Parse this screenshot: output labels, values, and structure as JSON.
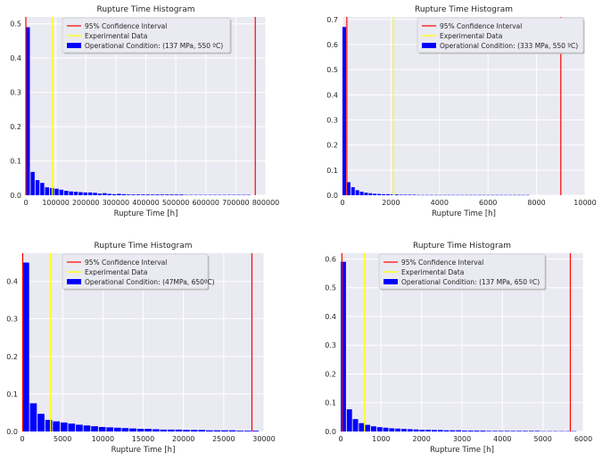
{
  "chart_data": [
    {
      "type": "bar",
      "title": "Rupture Time Histogram",
      "xlabel": "Rupture Time [h]",
      "ylabel": "",
      "xlim": [
        0,
        800000
      ],
      "ylim": [
        0,
        0.52
      ],
      "xticks": [
        0,
        100000,
        200000,
        300000,
        400000,
        500000,
        600000,
        700000,
        800000
      ],
      "xtick_labels": [
        "0",
        "100000",
        "200000",
        "300000",
        "400000",
        "500000",
        "600000",
        "700000",
        "800000"
      ],
      "yticks": [
        0.0,
        0.1,
        0.2,
        0.3,
        0.4,
        0.5
      ],
      "ytick_labels": [
        "0.0",
        "0.1",
        "0.2",
        "0.3",
        "0.4",
        "0.5"
      ],
      "bin_width": 16000,
      "values": [
        0.49,
        0.068,
        0.044,
        0.036,
        0.023,
        0.021,
        0.019,
        0.016,
        0.013,
        0.011,
        0.01,
        0.009,
        0.008,
        0.008,
        0.007,
        0.005,
        0.006,
        0.004,
        0.003,
        0.004,
        0.003,
        0.002,
        0.002,
        0.002,
        0.002,
        0.002,
        0.002,
        0.002,
        0.002,
        0.002,
        0.002,
        0.002,
        0.002,
        0.001,
        0.001,
        0.001,
        0.001,
        0.001,
        0.001,
        0.001,
        0.001,
        0.001,
        0.001,
        0.001,
        0.001,
        0.001,
        0.001
      ],
      "ci_lines": [
        0,
        765000
      ],
      "experimental": 88000,
      "legend": [
        "95% Confidence Interval",
        "Experimental Data",
        "Operational Condition: (137 MPa, 550 ºC)"
      ],
      "legend_position": "upper-center"
    },
    {
      "type": "bar",
      "title": "Rupture Time Histogram",
      "xlabel": "Rupture Time [h]",
      "ylabel": "",
      "xlim": [
        0,
        10000
      ],
      "ylim": [
        0,
        0.71
      ],
      "xticks": [
        0,
        2000,
        4000,
        6000,
        8000,
        10000
      ],
      "xtick_labels": [
        "0",
        "2000",
        "4000",
        "6000",
        "8000",
        "10000"
      ],
      "yticks": [
        0.0,
        0.1,
        0.2,
        0.3,
        0.4,
        0.5,
        0.6,
        0.7
      ],
      "ytick_labels": [
        "0.0",
        "0.1",
        "0.2",
        "0.3",
        "0.4",
        "0.5",
        "0.6",
        "0.7"
      ],
      "bin_width": 180,
      "values": [
        0.67,
        0.052,
        0.032,
        0.02,
        0.014,
        0.01,
        0.008,
        0.006,
        0.005,
        0.004,
        0.004,
        0.003,
        0.003,
        0.002,
        0.002,
        0.002,
        0.002,
        0.001,
        0.001,
        0.001,
        0.001,
        0.001,
        0.001,
        0.001,
        0.001,
        0.001,
        0.001,
        0.001,
        0.001,
        0.001,
        0.001,
        0.001,
        0.001,
        0.001,
        0.001,
        0.001,
        0.001,
        0.001,
        0.001,
        0.001,
        0.001,
        0.001,
        0.001
      ],
      "ci_lines": [
        180,
        9000
      ],
      "experimental": 2100,
      "legend": [
        "95% Confidence Interval",
        "Experimental Data",
        "Operational Condition: (333 MPa, 550 ºC)"
      ],
      "legend_position": "upper-right"
    },
    {
      "type": "bar",
      "title": "Rupture Time Histogram",
      "xlabel": "Rupture Time [h]",
      "ylabel": "",
      "xlim": [
        0,
        30000
      ],
      "ylim": [
        0,
        0.475
      ],
      "xticks": [
        0,
        5000,
        10000,
        15000,
        20000,
        25000,
        30000
      ],
      "xtick_labels": [
        "0",
        "5000",
        "10000",
        "15000",
        "20000",
        "25000",
        "30000"
      ],
      "yticks": [
        0.0,
        0.1,
        0.2,
        0.3,
        0.4
      ],
      "ytick_labels": [
        "0.0",
        "0.1",
        "0.2",
        "0.3",
        "0.4"
      ],
      "bin_width": 950,
      "values": [
        0.45,
        0.075,
        0.047,
        0.031,
        0.027,
        0.024,
        0.021,
        0.018,
        0.016,
        0.014,
        0.012,
        0.011,
        0.01,
        0.009,
        0.008,
        0.007,
        0.007,
        0.006,
        0.005,
        0.005,
        0.005,
        0.004,
        0.004,
        0.004,
        0.003,
        0.003,
        0.003,
        0.003,
        0.002,
        0.002,
        0.002
      ],
      "ci_lines": [
        50,
        28500
      ],
      "experimental": 3500,
      "legend": [
        "95% Confidence Interval",
        "Experimental Data",
        "Operational Condition: (47MPa, 650ºC)"
      ],
      "legend_position": "upper-center"
    },
    {
      "type": "bar",
      "title": "Rupture Time Histogram",
      "xlabel": "Rupture Time [h]",
      "ylabel": "",
      "xlim": [
        0,
        6000
      ],
      "ylim": [
        0,
        0.62
      ],
      "xticks": [
        0,
        1000,
        2000,
        3000,
        4000,
        5000,
        6000
      ],
      "xtick_labels": [
        "0",
        "1000",
        "2000",
        "3000",
        "4000",
        "5000",
        "6000"
      ],
      "yticks": [
        0.0,
        0.1,
        0.2,
        0.3,
        0.4,
        0.5,
        0.6
      ],
      "ytick_labels": [
        "0.0",
        "0.1",
        "0.2",
        "0.3",
        "0.4",
        "0.5",
        "0.6"
      ],
      "bin_width": 150,
      "values": [
        0.59,
        0.077,
        0.043,
        0.029,
        0.023,
        0.018,
        0.015,
        0.013,
        0.011,
        0.01,
        0.009,
        0.008,
        0.007,
        0.006,
        0.006,
        0.005,
        0.005,
        0.004,
        0.004,
        0.004,
        0.003,
        0.003,
        0.003,
        0.003,
        0.002,
        0.002,
        0.002,
        0.002,
        0.002,
        0.002,
        0.002,
        0.002,
        0.002,
        0.001,
        0.001,
        0.001,
        0.001,
        0.001,
        0.001
      ],
      "ci_lines": [
        30,
        5680
      ],
      "experimental": 590,
      "legend": [
        "95% Confidence Interval",
        "Experimental Data",
        "Operational Condition: (137 MPa, 650 ºC)"
      ],
      "legend_position": "upper-center"
    }
  ],
  "colors": {
    "plot_background": "#eaeaf2",
    "grid": "#ffffff",
    "bars": "#0000ff",
    "confidence_interval": "#ff0000",
    "experimental": "#ffff00"
  }
}
